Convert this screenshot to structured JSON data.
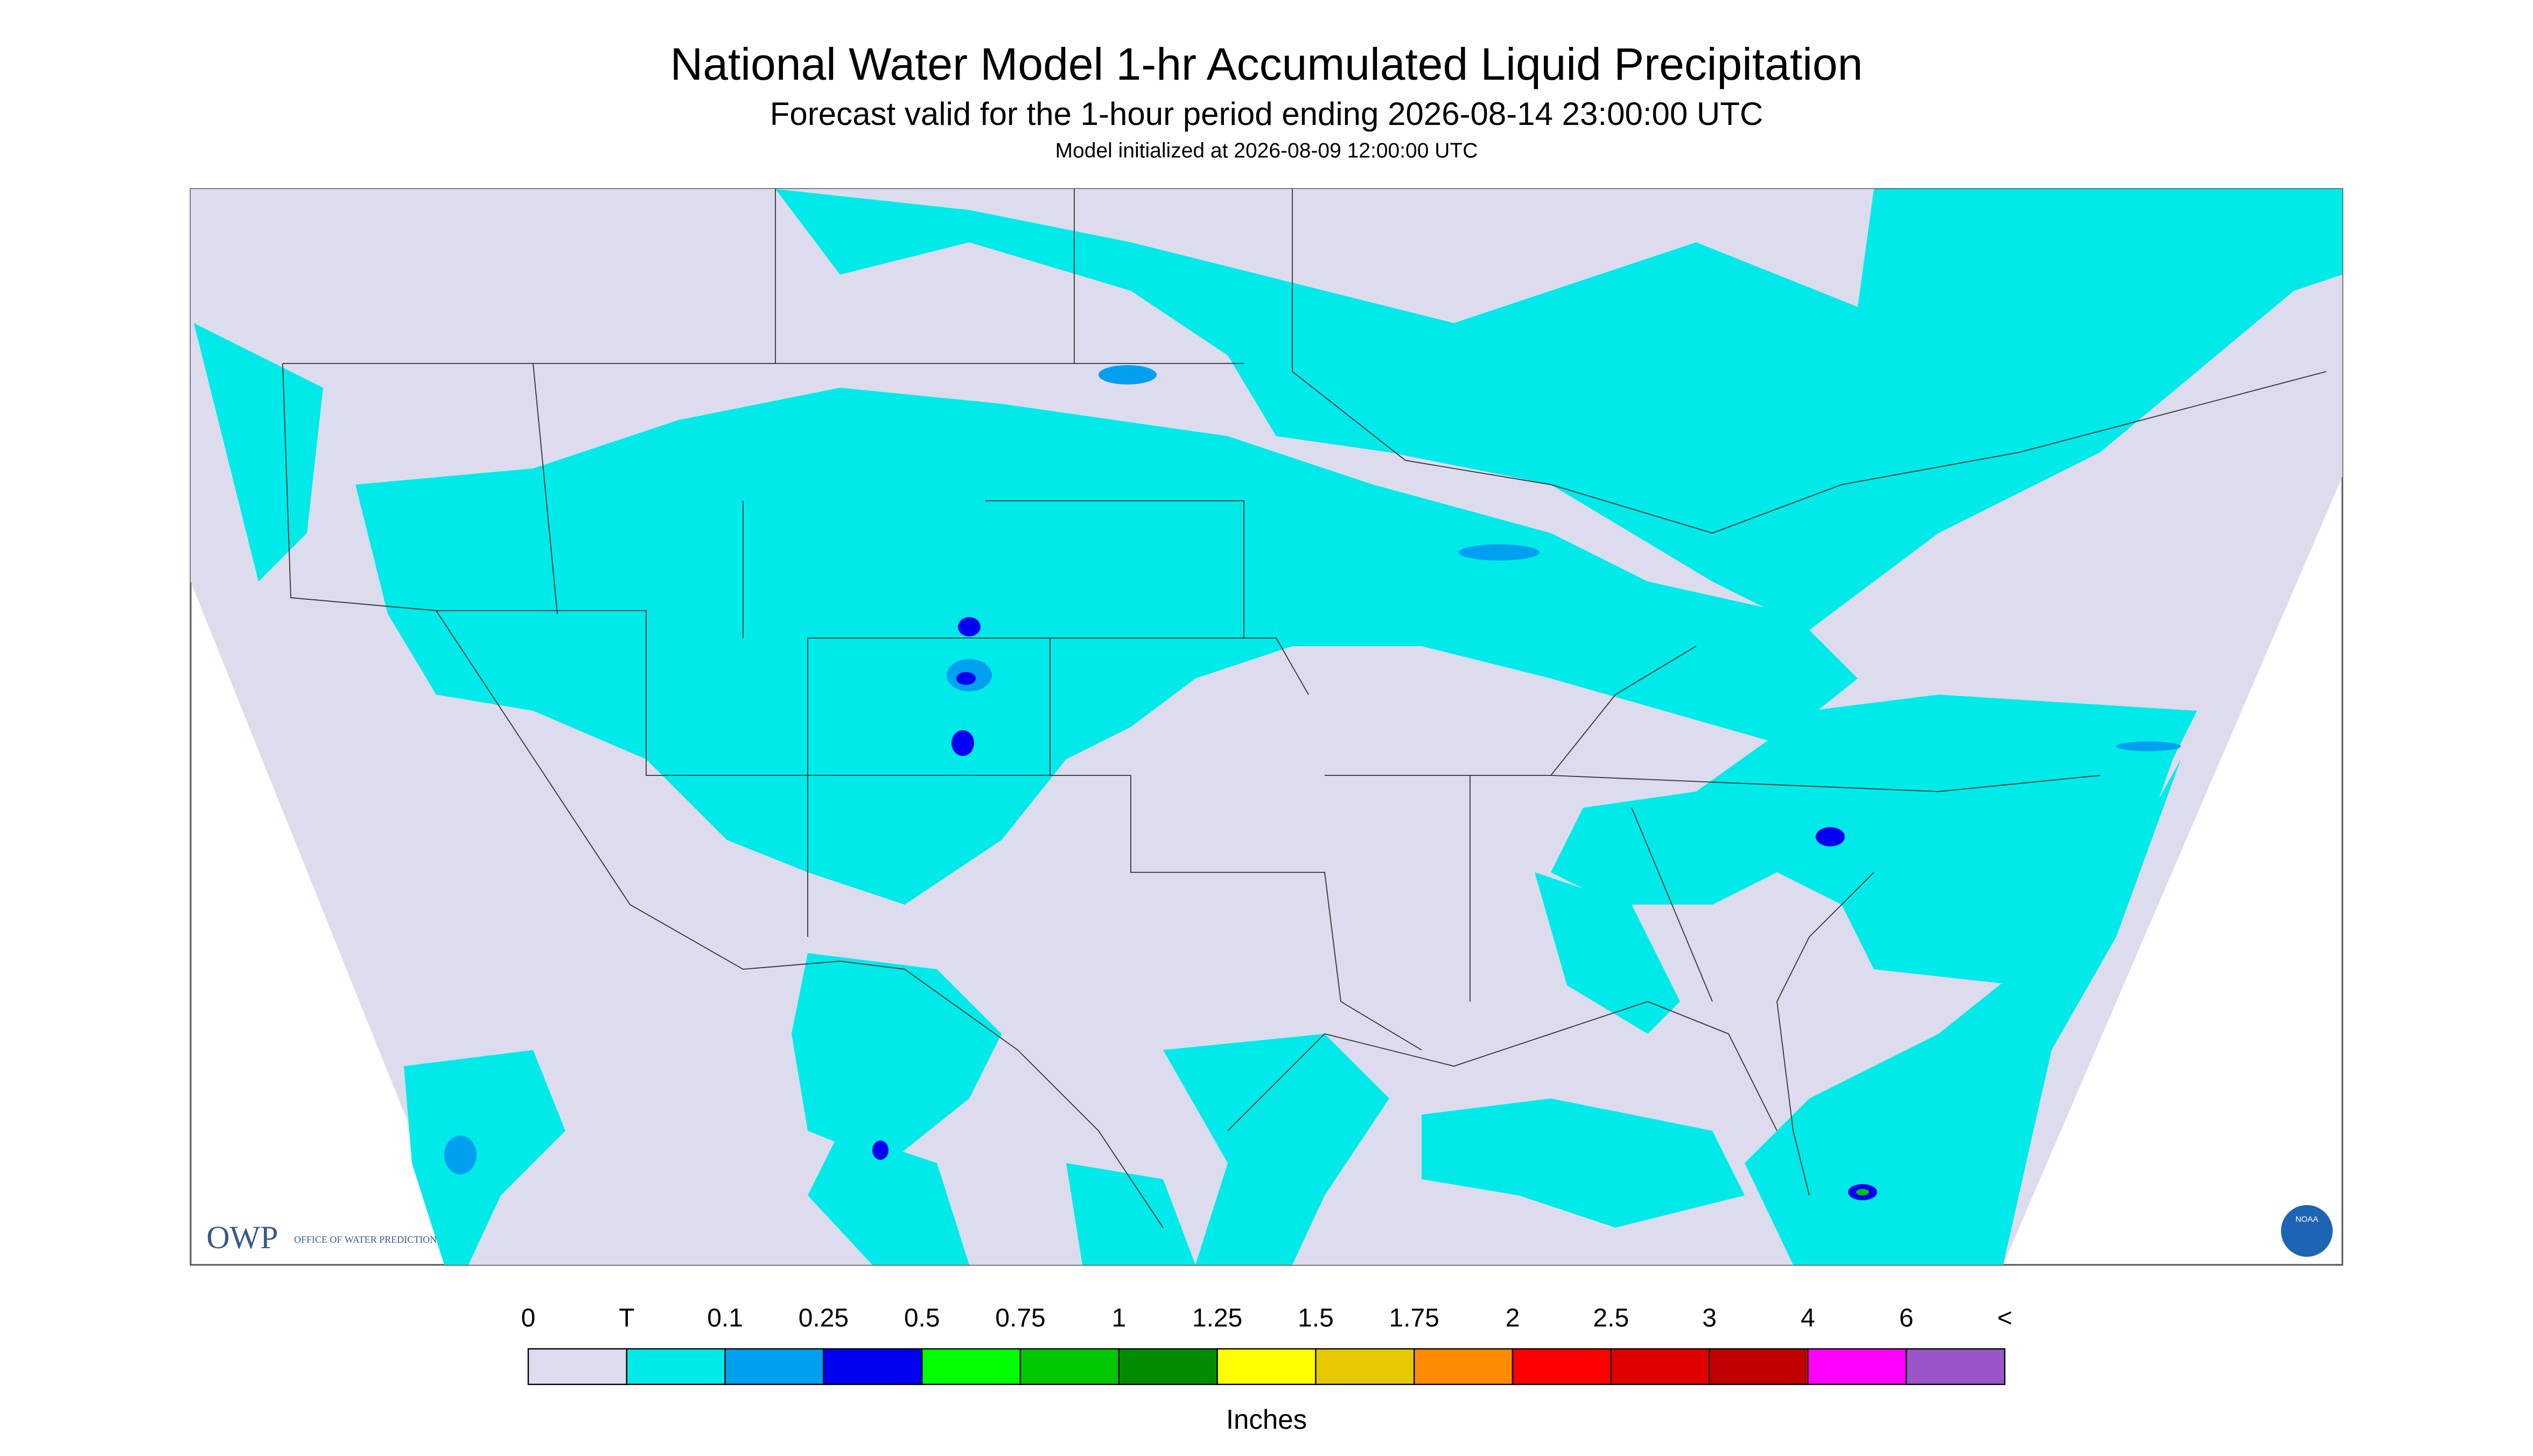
{
  "header": {
    "title": "National Water Model 1-hr Accumulated Liquid Precipitation",
    "subtitle": "Forecast valid for the 1-hour period ending 2026-08-14 23:00:00 UTC",
    "initialized": "Model initialized at 2026-08-09 12:00:00 UTC"
  },
  "legend": {
    "labels": [
      "0",
      "T",
      "0.1",
      "0.25",
      "0.5",
      "0.75",
      "1",
      "1.25",
      "1.5",
      "1.75",
      "2",
      "2.5",
      "3",
      "4",
      "6",
      "<"
    ],
    "colors": [
      "#dcdcee",
      "#00eaea",
      "#00a0f0",
      "#0000f0",
      "#00ff00",
      "#00c800",
      "#008c00",
      "#ffff00",
      "#e6c800",
      "#ff8c00",
      "#ff0000",
      "#e00000",
      "#c00000",
      "#ff00ff",
      "#9b55c8"
    ],
    "unit": "Inches"
  },
  "logo": {
    "owp": "OWP",
    "owp_name": "OFFICE OF WATER PREDICTION",
    "noaa": "NOAA"
  }
}
